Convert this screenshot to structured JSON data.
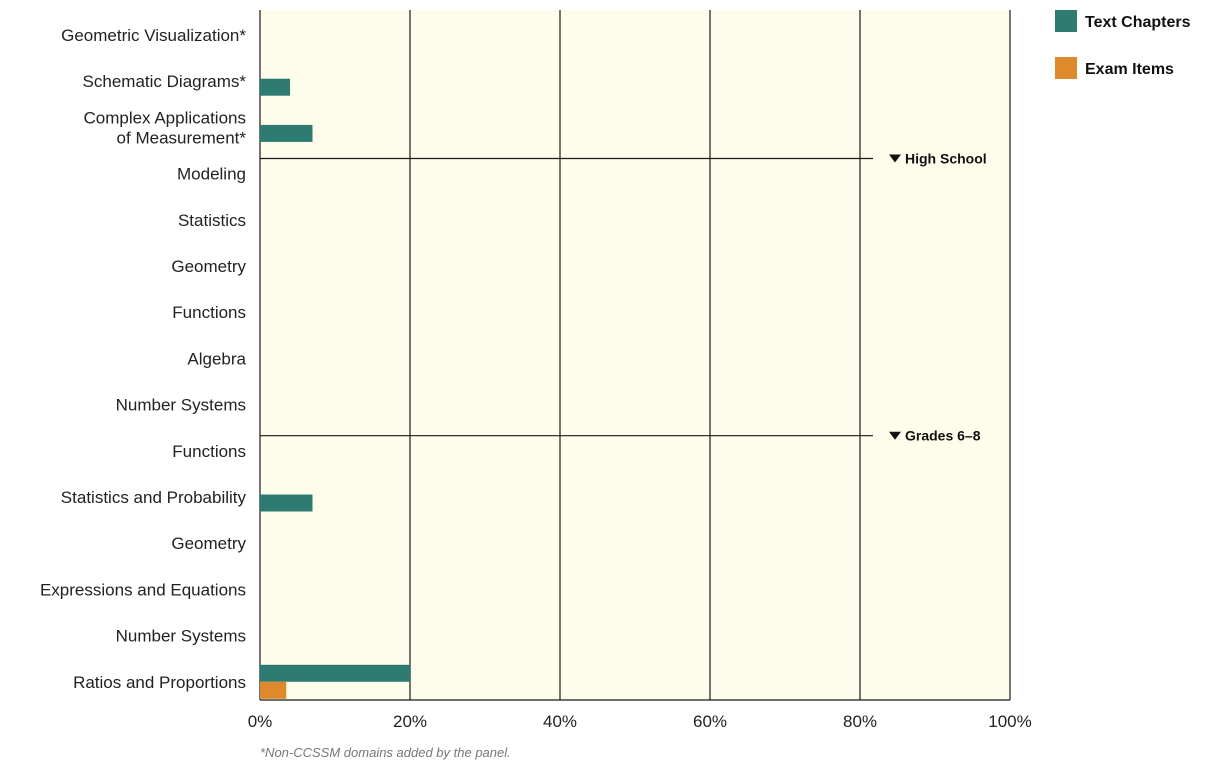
{
  "chart_data": {
    "type": "bar",
    "orientation": "horizontal",
    "categories": [
      [
        "Geometric Visualization*"
      ],
      [
        "Schematic Diagrams*"
      ],
      [
        "Complex Applications",
        "of Measurement*"
      ],
      [
        "Modeling"
      ],
      [
        "Statistics"
      ],
      [
        "Geometry"
      ],
      [
        "Functions"
      ],
      [
        "Algebra"
      ],
      [
        "Number Systems"
      ],
      [
        "Functions"
      ],
      [
        "Statistics and Probability"
      ],
      [
        "Geometry"
      ],
      [
        "Expressions and Equations"
      ],
      [
        "Number Systems"
      ],
      [
        "Ratios and Proportions"
      ]
    ],
    "series": [
      {
        "name": "Text Chapters",
        "color": "#2e7b72",
        "values": [
          0,
          4,
          7,
          0,
          0,
          0,
          0,
          0,
          0,
          0,
          7,
          0,
          0,
          0,
          20
        ]
      },
      {
        "name": "Exam Items",
        "color": "#de8a2c",
        "values": [
          0,
          0,
          0,
          0,
          0,
          0,
          0,
          0,
          0,
          0,
          0,
          0,
          0,
          0,
          3.5
        ]
      }
    ],
    "xlim": [
      0,
      100
    ],
    "xticks": [
      "0%",
      "20%",
      "40%",
      "60%",
      "80%",
      "100%"
    ],
    "xtick_values": [
      0,
      20,
      40,
      60,
      80,
      100
    ],
    "groups": [
      {
        "label": "High School",
        "after_index": 2
      },
      {
        "label": "Grades 6–8",
        "after_index": 8
      }
    ],
    "plot_background": "#fefcea",
    "grid": true,
    "legend_position": "top-right",
    "footnote": "*Non-CCSSM domains added by the panel."
  }
}
